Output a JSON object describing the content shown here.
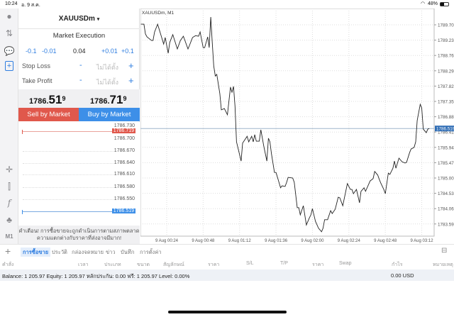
{
  "status_bar": {
    "time": "10:24",
    "date": "อ. 9 ส.ค.",
    "battery": "48%",
    "wifi_icon": "wifi-icon",
    "battery_icon": "battery-icon"
  },
  "left_toolbar": {
    "icons": [
      "user-icon",
      "trade-arrows-icon",
      "chat-icon",
      "new-order-icon",
      "crosshair-icon",
      "indicators-icon",
      "function-icon",
      "objects-icon"
    ],
    "timeframe": "M1",
    "add": "+"
  },
  "order_panel": {
    "symbol": "XAUUSDm",
    "symbol_caret": "▾",
    "execution": "Market Execution",
    "volume": {
      "dec_big": "-0.1",
      "dec_small": "-0.01",
      "value": "0.04",
      "inc_small": "+0.01",
      "inc_big": "+0.1"
    },
    "stop_loss": {
      "label": "Stop Loss",
      "minus": "-",
      "value": "ไม่ได้ตั้ง",
      "plus": "+"
    },
    "take_profit": {
      "label": "Take Profit",
      "minus": "-",
      "value": "ไม่ได้ตั้ง",
      "plus": "+"
    },
    "bid": {
      "main": "1786.",
      "big": "51",
      "sup": "9"
    },
    "ask": {
      "main": "1786.",
      "big": "71",
      "sup": "9"
    },
    "sell_label": "Sell by Market",
    "buy_label": "Buy by Market",
    "sell_color": "#e0584c",
    "buy_color": "#3d8fe8",
    "mini_chart": {
      "labels": [
        "1786.730",
        "1786.700",
        "1786.670",
        "1786.640",
        "1786.610",
        "1786.580",
        "1786.550"
      ],
      "ask_tag": "1786.719",
      "bid_tag": "1786.519"
    },
    "warning": "คำเตือน! การซื้อขายจะถูกดำเนินการตามสภาพตลาด ความแตกต่างกับราคาที่ส่งอาจมีมาก!"
  },
  "chart_data": {
    "type": "line",
    "title": "XAUUSDm, M1",
    "x_ticks": [
      "9 Aug 00:24",
      "9 Aug 00:48",
      "9 Aug 01:12",
      "9 Aug 01:36",
      "9 Aug 02:00",
      "9 Aug 02:24",
      "9 Aug 02:48",
      "9 Aug 03:12"
    ],
    "y_ticks": [
      "1789.700",
      "1789.230",
      "1788.760",
      "1788.290",
      "1787.820",
      "1787.350",
      "1786.880",
      "1786.410",
      "1785.940",
      "1785.470",
      "1785.000",
      "1784.530",
      "1784.060",
      "1783.590"
    ],
    "ylim": [
      1783.3,
      1790.2
    ],
    "current_price": "1786.519",
    "grid": true,
    "line_color": "#222222",
    "price_line_color": "#9fb5cc",
    "price_tag_color": "#2f6db5",
    "points": [
      [
        "00:07",
        1789.72
      ],
      [
        "00:09",
        1789.72
      ],
      [
        "00:10",
        1789.42
      ],
      [
        "00:11",
        1789.33
      ],
      [
        "00:14",
        1789.22
      ],
      [
        "00:15",
        1789.22
      ],
      [
        "00:16",
        1789.48
      ],
      [
        "00:18",
        1789.72
      ],
      [
        "00:20",
        1789.42
      ],
      [
        "00:22",
        1789.11
      ],
      [
        "00:23",
        1789.31
      ],
      [
        "00:25",
        1788.83
      ],
      [
        "00:26",
        1789.16
      ],
      [
        "00:28",
        1789.4
      ],
      [
        "00:30",
        1789.11
      ],
      [
        "00:31",
        1788.96
      ],
      [
        "00:33",
        1789.22
      ],
      [
        "00:35",
        1789.35
      ],
      [
        "00:38",
        1788.96
      ],
      [
        "00:39",
        1789.07
      ],
      [
        "00:41",
        1789.31
      ],
      [
        "00:43",
        1789.37
      ],
      [
        "00:45",
        1789.35
      ],
      [
        "00:46",
        1789.48
      ],
      [
        "00:48",
        1789.0
      ],
      [
        "00:49",
        1789.0
      ],
      [
        "00:51",
        1789.33
      ],
      [
        "00:52",
        1789.0
      ],
      [
        "00:53",
        1789.94
      ],
      [
        "00:54",
        1789.16
      ],
      [
        "00:55",
        1788.44
      ],
      [
        "00:56",
        1788.13
      ],
      [
        "00:57",
        1788.18
      ],
      [
        "00:59",
        1787.59
      ],
      [
        "01:00",
        1787.09
      ],
      [
        "01:02",
        1787.13
      ],
      [
        "01:04",
        1786.94
      ],
      [
        "01:06",
        1787.79
      ],
      [
        "01:07",
        1787.63
      ],
      [
        "01:08",
        1787.81
      ],
      [
        "01:09",
        1787.2
      ],
      [
        "01:10",
        1786.11
      ],
      [
        "01:13",
        1785.52
      ],
      [
        "01:14",
        1786.07
      ],
      [
        "01:17",
        1786.28
      ],
      [
        "01:18",
        1786.11
      ],
      [
        "01:20",
        1786.28
      ],
      [
        "01:21",
        1786.11
      ],
      [
        "01:22",
        1786.33
      ],
      [
        "01:23",
        1786.13
      ],
      [
        "01:25",
        1786.13
      ],
      [
        "01:26",
        1786.48
      ],
      [
        "01:28",
        1785.96
      ],
      [
        "01:30",
        1785.52
      ],
      [
        "01:31",
        1786.22
      ],
      [
        "01:32",
        1786.11
      ],
      [
        "01:33",
        1785.74
      ],
      [
        "01:35",
        1785.17
      ],
      [
        "01:36",
        1785.17
      ],
      [
        "01:37",
        1785.02
      ],
      [
        "01:39",
        1784.7
      ],
      [
        "01:40",
        1784.76
      ],
      [
        "01:42",
        1784.74
      ],
      [
        "01:43",
        1784.87
      ],
      [
        "01:44",
        1785.02
      ],
      [
        "01:47",
        1785.0
      ],
      [
        "01:48",
        1784.87
      ],
      [
        "01:50",
        1784.09
      ],
      [
        "01:51",
        1784.09
      ],
      [
        "01:52",
        1783.87
      ],
      [
        "01:54",
        1784.15
      ],
      [
        "01:56",
        1783.56
      ],
      [
        "01:58",
        1783.78
      ],
      [
        "01:59",
        1783.87
      ],
      [
        "02:00",
        1784.06
      ],
      [
        "02:02",
        1783.67
      ],
      [
        "02:04",
        1783.46
      ],
      [
        "02:06",
        1783.35
      ],
      [
        "02:07",
        1783.46
      ],
      [
        "02:08",
        1783.72
      ],
      [
        "02:10",
        1783.72
      ],
      [
        "02:12",
        1784.0
      ],
      [
        "02:13",
        1783.91
      ],
      [
        "02:15",
        1784.04
      ],
      [
        "02:17",
        1784.41
      ],
      [
        "02:18",
        1784.39
      ],
      [
        "02:20",
        1784.15
      ],
      [
        "02:23",
        1784.83
      ],
      [
        "02:25",
        1784.65
      ],
      [
        "02:26",
        1784.65
      ],
      [
        "02:27",
        1784.52
      ],
      [
        "02:29",
        1784.65
      ],
      [
        "02:31",
        1784.24
      ],
      [
        "02:32",
        1784.59
      ],
      [
        "02:34",
        1784.7
      ],
      [
        "02:35",
        1784.59
      ],
      [
        "02:38",
        1784.91
      ],
      [
        "02:40",
        1784.98
      ],
      [
        "02:41",
        1785.2
      ],
      [
        "02:43",
        1785.09
      ],
      [
        "02:44",
        1784.96
      ],
      [
        "02:45",
        1784.85
      ],
      [
        "02:47",
        1784.65
      ],
      [
        "02:48",
        1784.52
      ],
      [
        "02:50",
        1785.15
      ],
      [
        "02:51",
        1785.11
      ],
      [
        "02:53",
        1785.3
      ],
      [
        "02:54",
        1785.52
      ],
      [
        "02:55",
        1785.3
      ],
      [
        "02:57",
        1785.61
      ],
      [
        "02:59",
        1785.5
      ],
      [
        "03:01",
        1785.46
      ],
      [
        "03:02",
        1785.48
      ],
      [
        "03:04",
        1785.78
      ],
      [
        "03:05",
        1785.89
      ],
      [
        "03:07",
        1785.94
      ],
      [
        "03:08",
        1786.11
      ],
      [
        "03:09",
        1786.76
      ],
      [
        "03:11",
        1787.26
      ],
      [
        "03:12",
        1787.15
      ],
      [
        "03:13",
        1786.5
      ],
      [
        "03:15",
        1786.39
      ],
      [
        "03:16",
        1786.5
      ],
      [
        "03:17",
        1786.52
      ]
    ]
  },
  "bottom": {
    "tabs": [
      "การซื้อขาย",
      "ประวัติ",
      "กล่องจดหมาย",
      "ข่าว",
      "บันทึก",
      "การตั้งค่า"
    ],
    "columns": [
      "คำสั่ง",
      "เวลา",
      "ประเภท",
      "ขนาด",
      "สัญลักษณ์",
      "ราคา",
      "S/L",
      "T/P",
      "ราคา",
      "Swap",
      "กำไร",
      "หมายเหตุ"
    ],
    "balance_text": "Balance: 1 205.97 Equity: 1 205.97 หลักประกัน: 0.00 ฟรี: 1 205.97 Level: 0.00%",
    "profit": "0.00  USD"
  }
}
